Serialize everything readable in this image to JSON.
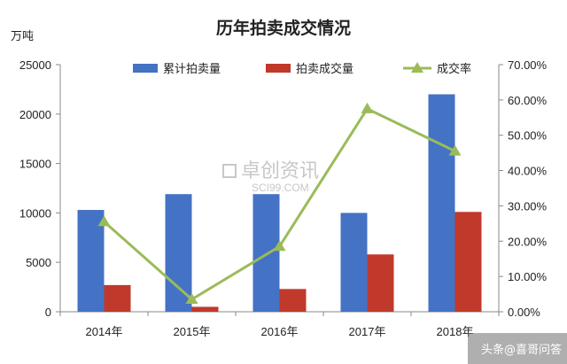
{
  "chart_data": {
    "type": "bar",
    "title": "历年拍卖成交情况",
    "ylabel_left": "万吨",
    "categories": [
      "2014年",
      "2015年",
      "2016年",
      "2017年",
      "2018年"
    ],
    "series": [
      {
        "name": "累计拍卖量",
        "kind": "bar",
        "axis": "left",
        "values": [
          10300,
          11900,
          11900,
          10000,
          22000
        ]
      },
      {
        "name": "拍卖成交量",
        "kind": "bar",
        "axis": "left",
        "values": [
          2700,
          500,
          2300,
          5800,
          10100
        ]
      },
      {
        "name": "成交率",
        "kind": "line",
        "axis": "right",
        "values": [
          25.5,
          3.5,
          18.5,
          57.5,
          45.5
        ]
      }
    ],
    "ylim_left": [
      0,
      25000
    ],
    "yticks_left": [
      "0",
      "5000",
      "10000",
      "15000",
      "20000",
      "25000"
    ],
    "ylim_right": [
      0,
      70
    ],
    "yticks_right": [
      "0.00%",
      "10.00%",
      "20.00%",
      "30.00%",
      "40.00%",
      "50.00%",
      "60.00%",
      "70.00%"
    ],
    "legend_position": "top",
    "grid": false,
    "colors": {
      "bar1": "#4472c4",
      "bar2": "#c0392b",
      "line": "#9bbb59"
    }
  },
  "watermark": {
    "text": "卓创资讯",
    "subtext": "SCI99.COM"
  },
  "corner_watermark": {
    "text": "头条@喜哥问答"
  }
}
